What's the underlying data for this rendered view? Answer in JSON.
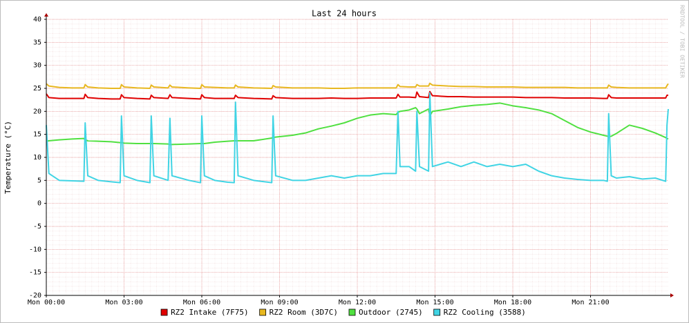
{
  "chart_data": {
    "type": "line",
    "title": "Last 24 hours",
    "y_label": "Temperature (°C)",
    "watermark": "RRDTOOL / TOBI OETIKER",
    "xlim": [
      0,
      24
    ],
    "ylim": [
      -20,
      40
    ],
    "xticks": [
      {
        "value": 0,
        "label": "Mon 00:00"
      },
      {
        "value": 3,
        "label": "Mon 03:00"
      },
      {
        "value": 6,
        "label": "Mon 06:00"
      },
      {
        "value": 9,
        "label": "Mon 09:00"
      },
      {
        "value": 12,
        "label": "Mon 12:00"
      },
      {
        "value": 15,
        "label": "Mon 15:00"
      },
      {
        "value": 18,
        "label": "Mon 18:00"
      },
      {
        "value": 21,
        "label": "Mon 21:00"
      }
    ],
    "yticks": [
      -20,
      -15,
      -10,
      -5,
      0,
      5,
      10,
      15,
      20,
      25,
      30,
      35,
      40
    ],
    "grid": true,
    "x": [
      0,
      0.1,
      0.5,
      1,
      1.45,
      1.5,
      1.6,
      2,
      2.5,
      2.85,
      2.9,
      3.0,
      3.5,
      4.0,
      4.05,
      4.15,
      4.7,
      4.77,
      4.85,
      5.5,
      5.95,
      6.0,
      6.1,
      6.5,
      7.0,
      7.25,
      7.3,
      7.4,
      8,
      8.7,
      8.75,
      8.85,
      9.5,
      10,
      10.5,
      11,
      11.5,
      12,
      12.5,
      13,
      13.5,
      13.57,
      13.65,
      14,
      14.25,
      14.3,
      14.4,
      14.75,
      14.8,
      14.9,
      15.5,
      16,
      16.5,
      17,
      17.5,
      18,
      18.5,
      19,
      19.5,
      20,
      20.5,
      21,
      21.5,
      21.65,
      21.7,
      21.8,
      22,
      22.5,
      23,
      23.5,
      23.9,
      23.95,
      24
    ],
    "series": [
      {
        "name": "RZ2 Intake (7F75)",
        "color": "#e00000",
        "values": [
          23.8,
          23,
          22.8,
          22.8,
          22.8,
          23.7,
          23,
          22.8,
          22.7,
          22.7,
          23.6,
          23,
          22.8,
          22.7,
          23.5,
          23,
          22.8,
          23.6,
          23,
          22.8,
          22.7,
          23.6,
          23,
          22.8,
          22.8,
          22.8,
          23.5,
          23,
          22.8,
          22.7,
          23.4,
          23,
          22.8,
          22.8,
          22.8,
          22.9,
          22.8,
          22.8,
          22.9,
          22.9,
          22.9,
          23.7,
          23.1,
          23.1,
          23,
          24.2,
          23.2,
          23,
          24.3,
          23.4,
          23.2,
          23.2,
          23.1,
          23.1,
          23.1,
          23.1,
          23,
          23,
          23,
          22.9,
          22.9,
          22.9,
          22.8,
          22.8,
          23.6,
          23,
          22.9,
          22.9,
          22.9,
          22.9,
          22.9,
          23.5,
          23.5
        ]
      },
      {
        "name": "RZ2 Room (3D7C)",
        "color": "#e8b820",
        "values": [
          26,
          25.5,
          25.2,
          25.1,
          25.1,
          25.8,
          25.3,
          25.1,
          25,
          25,
          25.8,
          25.3,
          25.1,
          25,
          25.7,
          25.3,
          25.1,
          25.7,
          25.3,
          25.1,
          25,
          25.8,
          25.3,
          25.2,
          25.1,
          25.1,
          25.7,
          25.3,
          25.1,
          25,
          25.6,
          25.3,
          25.1,
          25.1,
          25.1,
          25,
          25,
          25.1,
          25.1,
          25.1,
          25.1,
          25.8,
          25.4,
          25.3,
          25.3,
          25.8,
          25.5,
          25.5,
          26.1,
          25.7,
          25.5,
          25.4,
          25.4,
          25.3,
          25.3,
          25.3,
          25.2,
          25.2,
          25.2,
          25.2,
          25.1,
          25.1,
          25.1,
          25.1,
          25.7,
          25.3,
          25.2,
          25.1,
          25.1,
          25.1,
          25.1,
          25.6,
          26
        ]
      },
      {
        "name": "Outdoor (2745)",
        "color": "#50e040",
        "values": [
          13.5,
          13.6,
          13.8,
          14,
          14.1,
          13.8,
          13.6,
          13.5,
          13.4,
          13.2,
          13.2,
          13.1,
          13,
          13,
          13,
          13,
          12.9,
          12.8,
          12.8,
          12.9,
          13,
          13,
          13,
          13.3,
          13.5,
          13.6,
          13.6,
          13.6,
          13.6,
          14.2,
          14.3,
          14.4,
          14.8,
          15.3,
          16.2,
          16.8,
          17.5,
          18.5,
          19.2,
          19.5,
          19.3,
          19.8,
          20,
          20.3,
          20.8,
          20.5,
          19.5,
          20.5,
          19,
          20,
          20.5,
          21,
          21.3,
          21.5,
          21.8,
          21.2,
          20.8,
          20.3,
          19.5,
          18,
          16.5,
          15.5,
          14.8,
          14.6,
          14.5,
          14.6,
          15.2,
          17,
          16.3,
          15.3,
          14.3,
          14.1,
          14
        ]
      },
      {
        "name": "RZ2 Cooling (3588)",
        "color": "#40d4e4",
        "values": [
          17,
          6.5,
          5,
          4.9,
          4.8,
          17.5,
          6,
          5,
          4.7,
          4.5,
          19,
          6,
          5,
          4.5,
          19,
          6,
          5,
          18.5,
          6,
          5,
          4.5,
          19,
          6,
          5,
          4.6,
          4.5,
          22,
          6,
          5,
          4.5,
          19,
          6,
          5,
          5,
          5.5,
          6,
          5.5,
          6,
          6,
          6.5,
          6.5,
          20,
          8,
          8,
          7,
          20,
          8,
          7,
          24,
          8,
          9,
          8,
          9,
          8,
          8.5,
          8,
          8.5,
          7,
          6,
          5.5,
          5.2,
          5,
          5,
          4.8,
          19.5,
          6,
          5.5,
          5.8,
          5.3,
          5.5,
          4.8,
          17,
          20.5
        ]
      }
    ]
  }
}
